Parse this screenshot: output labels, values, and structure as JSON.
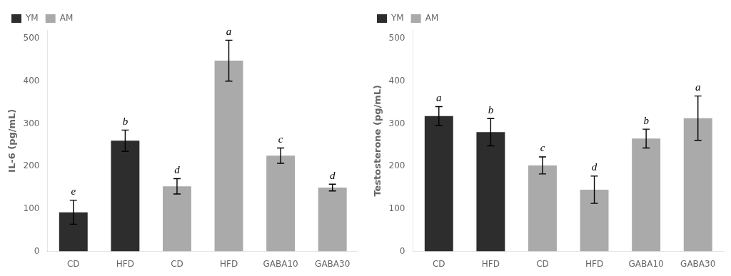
{
  "chart_data": [
    {
      "type": "bar",
      "categories": [
        "CD",
        "HFD",
        "CD",
        "HFD",
        "GABA10",
        "GABA30"
      ],
      "series": [
        {
          "name": "YM",
          "color": "#2d2d2d",
          "values": [
            92,
            260,
            null,
            null,
            null,
            null
          ],
          "errors": [
            28,
            25,
            null,
            null,
            null,
            null
          ],
          "letters": [
            "e",
            "b",
            null,
            null,
            null,
            null
          ]
        },
        {
          "name": "AM",
          "color": "#aaaaaa",
          "values": [
            null,
            null,
            153,
            448,
            225,
            150
          ],
          "errors": [
            null,
            null,
            18,
            48,
            18,
            8
          ],
          "letters": [
            null,
            null,
            "d",
            "a",
            "c",
            "d"
          ]
        }
      ],
      "y_label": "IL-6 (pg/mL)",
      "ylim": [
        0,
        520
      ],
      "yticks": [
        0,
        100,
        200,
        300,
        400,
        500
      ],
      "legend": "upper left",
      "grid": false
    },
    {
      "type": "bar",
      "categories": [
        "CD",
        "HFD",
        "CD",
        "HFD",
        "GABA10",
        "GABA30"
      ],
      "series": [
        {
          "name": "YM",
          "color": "#2d2d2d",
          "values": [
            318,
            280,
            null,
            null,
            null,
            null
          ],
          "errors": [
            22,
            32,
            null,
            null,
            null,
            null
          ],
          "letters": [
            "a",
            "b",
            null,
            null,
            null,
            null
          ]
        },
        {
          "name": "AM",
          "color": "#aaaaaa",
          "values": [
            null,
            null,
            202,
            145,
            265,
            313
          ],
          "errors": [
            null,
            null,
            20,
            32,
            22,
            52
          ],
          "letters": [
            null,
            null,
            "c",
            "d",
            "b",
            "a"
          ]
        }
      ],
      "y_label": "Testosterone (pg/mL)",
      "ylim": [
        0,
        520
      ],
      "yticks": [
        0,
        100,
        200,
        300,
        400,
        500
      ],
      "legend": "upper left",
      "grid": false
    }
  ]
}
